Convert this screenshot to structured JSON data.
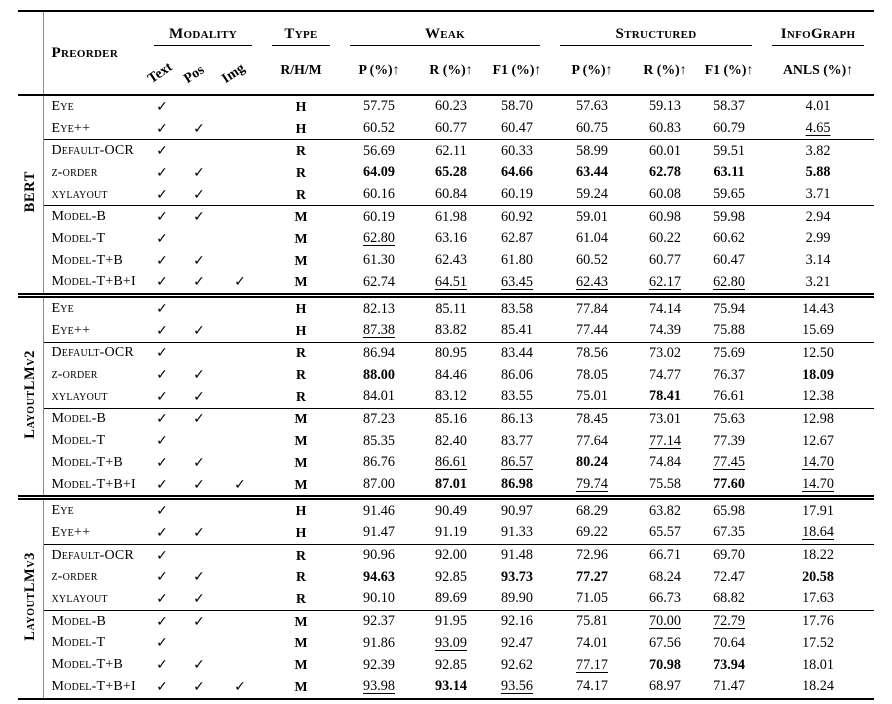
{
  "styles": {
    "bold_marker": "*",
    "underline_marker": "_"
  },
  "glyphs": {
    "check": "✓"
  },
  "header": {
    "preorder": "Preorder",
    "modality": {
      "label": "Modality",
      "cols": [
        "Text",
        "Pos",
        "Img"
      ]
    },
    "type": {
      "label": "Type",
      "col": "R/H/M"
    },
    "weak": {
      "label": "Weak",
      "cols": [
        "P (%)↑",
        "R (%)↑",
        "F1 (%)↑"
      ]
    },
    "structured": {
      "label": "Structured",
      "cols": [
        "P (%)↑",
        "R (%)↑",
        "F1 (%)↑"
      ]
    },
    "infograph": {
      "label": "InfoGraph",
      "col": "ANLS (%)↑"
    }
  },
  "sections": [
    {
      "group": "BERT",
      "subsections": [
        {
          "rows": [
            {
              "label": "Eye",
              "text": true,
              "pos": false,
              "img": false,
              "type": "H",
              "weak": [
                "57.75",
                "60.23",
                "58.70"
              ],
              "structured": [
                "57.63",
                "59.13",
                "58.37"
              ],
              "anls": "4.01"
            },
            {
              "label": "Eye++",
              "text": true,
              "pos": true,
              "img": false,
              "type": "H",
              "weak": [
                "60.52",
                "60.77",
                "60.47"
              ],
              "structured": [
                "60.75",
                "60.83",
                "60.79"
              ],
              "anls": "_4.65"
            }
          ]
        },
        {
          "rows": [
            {
              "label": "Default-OCR",
              "text": true,
              "pos": false,
              "img": false,
              "type": "R",
              "weak": [
                "56.69",
                "62.11",
                "60.33"
              ],
              "structured": [
                "58.99",
                "60.01",
                "59.51"
              ],
              "anls": "3.82"
            },
            {
              "label": "z-order",
              "text": true,
              "pos": true,
              "img": false,
              "type": "R",
              "weak": [
                "*64.09",
                "*65.28",
                "*64.66"
              ],
              "structured": [
                "*63.44",
                "*62.78",
                "*63.11"
              ],
              "anls": "*5.88"
            },
            {
              "label": "xylayout",
              "text": true,
              "pos": true,
              "img": false,
              "type": "R",
              "weak": [
                "60.16",
                "60.84",
                "60.19"
              ],
              "structured": [
                "59.24",
                "60.08",
                "59.65"
              ],
              "anls": "3.71"
            }
          ]
        },
        {
          "rows": [
            {
              "label": "Model-B",
              "text": true,
              "pos": true,
              "img": false,
              "type": "M",
              "weak": [
                "60.19",
                "61.98",
                "60.92"
              ],
              "structured": [
                "59.01",
                "60.98",
                "59.98"
              ],
              "anls": "2.94"
            },
            {
              "label": "Model-T",
              "text": true,
              "pos": false,
              "img": false,
              "type": "M",
              "weak": [
                "_62.80",
                "63.16",
                "62.87"
              ],
              "structured": [
                "61.04",
                "60.22",
                "60.62"
              ],
              "anls": "2.99"
            },
            {
              "label": "Model-T+B",
              "text": true,
              "pos": true,
              "img": false,
              "type": "M",
              "weak": [
                "61.30",
                "62.43",
                "61.80"
              ],
              "structured": [
                "60.52",
                "60.77",
                "60.47"
              ],
              "anls": "3.14"
            },
            {
              "label": "Model-T+B+I",
              "text": true,
              "pos": true,
              "img": true,
              "type": "M",
              "weak": [
                "62.74",
                "_64.51",
                "_63.45"
              ],
              "structured": [
                "_62.43",
                "_62.17",
                "_62.80"
              ],
              "anls": "3.21"
            }
          ]
        }
      ]
    },
    {
      "group": "LayoutLMv2",
      "subsections": [
        {
          "rows": [
            {
              "label": "Eye",
              "text": true,
              "pos": false,
              "img": false,
              "type": "H",
              "weak": [
                "82.13",
                "85.11",
                "83.58"
              ],
              "structured": [
                "77.84",
                "74.14",
                "75.94"
              ],
              "anls": "14.43"
            },
            {
              "label": "Eye++",
              "text": true,
              "pos": true,
              "img": false,
              "type": "H",
              "weak": [
                "_87.38",
                "83.82",
                "85.41"
              ],
              "structured": [
                "77.44",
                "74.39",
                "75.88"
              ],
              "anls": "15.69"
            }
          ]
        },
        {
          "rows": [
            {
              "label": "Default-OCR",
              "text": true,
              "pos": false,
              "img": false,
              "type": "R",
              "weak": [
                "86.94",
                "80.95",
                "83.44"
              ],
              "structured": [
                "78.56",
                "73.02",
                "75.69"
              ],
              "anls": "12.50"
            },
            {
              "label": "z-order",
              "text": true,
              "pos": true,
              "img": false,
              "type": "R",
              "weak": [
                "*88.00",
                "84.46",
                "86.06"
              ],
              "structured": [
                "78.05",
                "74.77",
                "76.37"
              ],
              "anls": "*18.09"
            },
            {
              "label": "xylayout",
              "text": true,
              "pos": true,
              "img": false,
              "type": "R",
              "weak": [
                "84.01",
                "83.12",
                "83.55"
              ],
              "structured": [
                "75.01",
                "*78.41",
                "76.61"
              ],
              "anls": "12.38"
            }
          ]
        },
        {
          "rows": [
            {
              "label": "Model-B",
              "text": true,
              "pos": true,
              "img": false,
              "type": "M",
              "weak": [
                "87.23",
                "85.16",
                "86.13"
              ],
              "structured": [
                "78.45",
                "73.01",
                "75.63"
              ],
              "anls": "12.98"
            },
            {
              "label": "Model-T",
              "text": true,
              "pos": false,
              "img": false,
              "type": "M",
              "weak": [
                "85.35",
                "82.40",
                "83.77"
              ],
              "structured": [
                "77.64",
                "_77.14",
                "77.39"
              ],
              "anls": "12.67"
            },
            {
              "label": "Model-T+B",
              "text": true,
              "pos": true,
              "img": false,
              "type": "M",
              "weak": [
                "86.76",
                "_86.61",
                "_86.57"
              ],
              "structured": [
                "*80.24",
                "74.84",
                "_77.45"
              ],
              "anls": "_14.70"
            },
            {
              "label": "Model-T+B+I",
              "text": true,
              "pos": true,
              "img": true,
              "type": "M",
              "weak": [
                "87.00",
                "*87.01",
                "*86.98"
              ],
              "structured": [
                "_79.74",
                "75.58",
                "*77.60"
              ],
              "anls": "_14.70"
            }
          ]
        }
      ]
    },
    {
      "group": "LayoutLMv3",
      "subsections": [
        {
          "rows": [
            {
              "label": "Eye",
              "text": true,
              "pos": false,
              "img": false,
              "type": "H",
              "weak": [
                "91.46",
                "90.49",
                "90.97"
              ],
              "structured": [
                "68.29",
                "63.82",
                "65.98"
              ],
              "anls": "17.91"
            },
            {
              "label": "Eye++",
              "text": true,
              "pos": true,
              "img": false,
              "type": "H",
              "weak": [
                "91.47",
                "91.19",
                "91.33"
              ],
              "structured": [
                "69.22",
                "65.57",
                "67.35"
              ],
              "anls": "_18.64"
            }
          ]
        },
        {
          "rows": [
            {
              "label": "Default-OCR",
              "text": true,
              "pos": false,
              "img": false,
              "type": "R",
              "weak": [
                "90.96",
                "92.00",
                "91.48"
              ],
              "structured": [
                "72.96",
                "66.71",
                "69.70"
              ],
              "anls": "18.22"
            },
            {
              "label": "z-order",
              "text": true,
              "pos": true,
              "img": false,
              "type": "R",
              "weak": [
                "*94.63",
                "92.85",
                "*93.73"
              ],
              "structured": [
                "*77.27",
                "68.24",
                "72.47"
              ],
              "anls": "*20.58"
            },
            {
              "label": "xylayout",
              "text": true,
              "pos": true,
              "img": false,
              "type": "R",
              "weak": [
                "90.10",
                "89.69",
                "89.90"
              ],
              "structured": [
                "71.05",
                "66.73",
                "68.82"
              ],
              "anls": "17.63"
            }
          ]
        },
        {
          "rows": [
            {
              "label": "Model-B",
              "text": true,
              "pos": true,
              "img": false,
              "type": "M",
              "weak": [
                "92.37",
                "91.95",
                "92.16"
              ],
              "structured": [
                "75.81",
                "_70.00",
                "_72.79"
              ],
              "anls": "17.76"
            },
            {
              "label": "Model-T",
              "text": true,
              "pos": false,
              "img": false,
              "type": "M",
              "weak": [
                "91.86",
                "_93.09",
                "92.47"
              ],
              "structured": [
                "74.01",
                "67.56",
                "70.64"
              ],
              "anls": "17.52"
            },
            {
              "label": "Model-T+B",
              "text": true,
              "pos": true,
              "img": false,
              "type": "M",
              "weak": [
                "92.39",
                "92.85",
                "92.62"
              ],
              "structured": [
                "_77.17",
                "*70.98",
                "*73.94"
              ],
              "anls": "18.01"
            },
            {
              "label": "Model-T+B+I",
              "text": true,
              "pos": true,
              "img": true,
              "type": "M",
              "weak": [
                "_93.98",
                "*93.14",
                "_93.56"
              ],
              "structured": [
                "74.17",
                "68.97",
                "71.47"
              ],
              "anls": "18.24"
            }
          ]
        }
      ]
    }
  ]
}
